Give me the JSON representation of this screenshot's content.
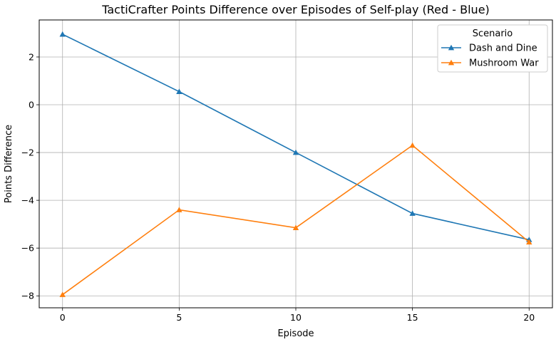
{
  "chart_data": {
    "type": "line",
    "title": "TactiCrafter Points Difference over Episodes of Self-play (Red - Blue)",
    "xlabel": "Episode",
    "ylabel": "Points Difference",
    "x": [
      0,
      5,
      10,
      15,
      20
    ],
    "xticks": [
      0,
      5,
      10,
      15,
      20
    ],
    "yticks": [
      2,
      0,
      -2,
      -4,
      -6,
      -8
    ],
    "xlim": [
      -1,
      21
    ],
    "ylim": [
      -8.5,
      3.55
    ],
    "grid": true,
    "legend": {
      "title": "Scenario",
      "placement": "top-right"
    },
    "series": [
      {
        "name": "Dash and Dine",
        "color": "#1f77b4",
        "marker": "triangle-up",
        "values": [
          2.95,
          0.55,
          -2.0,
          -4.55,
          -5.65
        ]
      },
      {
        "name": "Mushroom War",
        "color": "#ff7f0e",
        "marker": "triangle-up",
        "values": [
          -7.95,
          -4.4,
          -5.15,
          -1.7,
          -5.75
        ]
      }
    ]
  }
}
